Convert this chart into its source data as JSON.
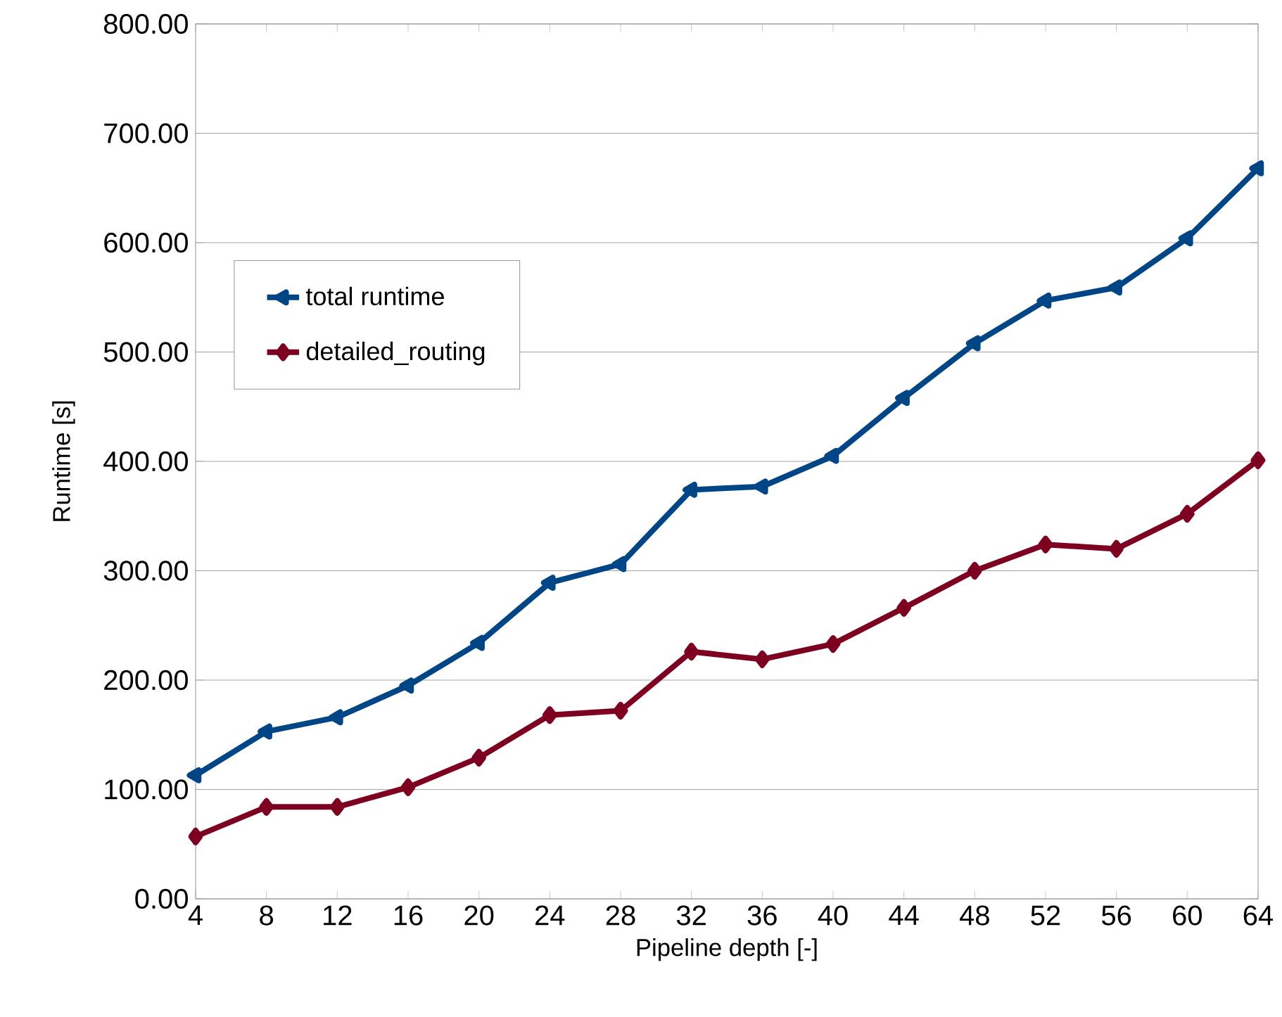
{
  "chart_data": {
    "type": "line",
    "xlabel": "Pipeline depth [-]",
    "ylabel": "Runtime [s]",
    "x": [
      4,
      8,
      12,
      16,
      20,
      24,
      28,
      32,
      36,
      40,
      44,
      48,
      52,
      56,
      60,
      64
    ],
    "series": [
      {
        "name": "total runtime",
        "color": "#004586",
        "marker": "triangle",
        "values": [
          113,
          153,
          166,
          195,
          234,
          289,
          306,
          374,
          377,
          405,
          458,
          508,
          547,
          559,
          604,
          668
        ]
      },
      {
        "name": "detailed_routing",
        "color": "#7e0021",
        "marker": "diamond",
        "values": [
          57,
          84,
          84,
          102,
          129,
          168,
          172,
          226,
          219,
          233,
          266,
          300,
          324,
          320,
          352,
          401
        ]
      }
    ],
    "xlim": [
      4,
      64
    ],
    "xticks": [
      4,
      8,
      12,
      16,
      20,
      24,
      28,
      32,
      36,
      40,
      44,
      48,
      52,
      56,
      60,
      64
    ],
    "ylim": [
      0,
      800
    ],
    "yticks": [
      {
        "value": 0,
        "label": "0.00"
      },
      {
        "value": 100,
        "label": "100.00"
      },
      {
        "value": 200,
        "label": "200.00"
      },
      {
        "value": 300,
        "label": "300.00"
      },
      {
        "value": 400,
        "label": "400.00"
      },
      {
        "value": 500,
        "label": "500.00"
      },
      {
        "value": 600,
        "label": "600.00"
      },
      {
        "value": 700,
        "label": "700.00"
      },
      {
        "value": 800,
        "label": "800.00"
      }
    ],
    "grid": "y",
    "legend": "top left",
    "line_style": "solid"
  }
}
